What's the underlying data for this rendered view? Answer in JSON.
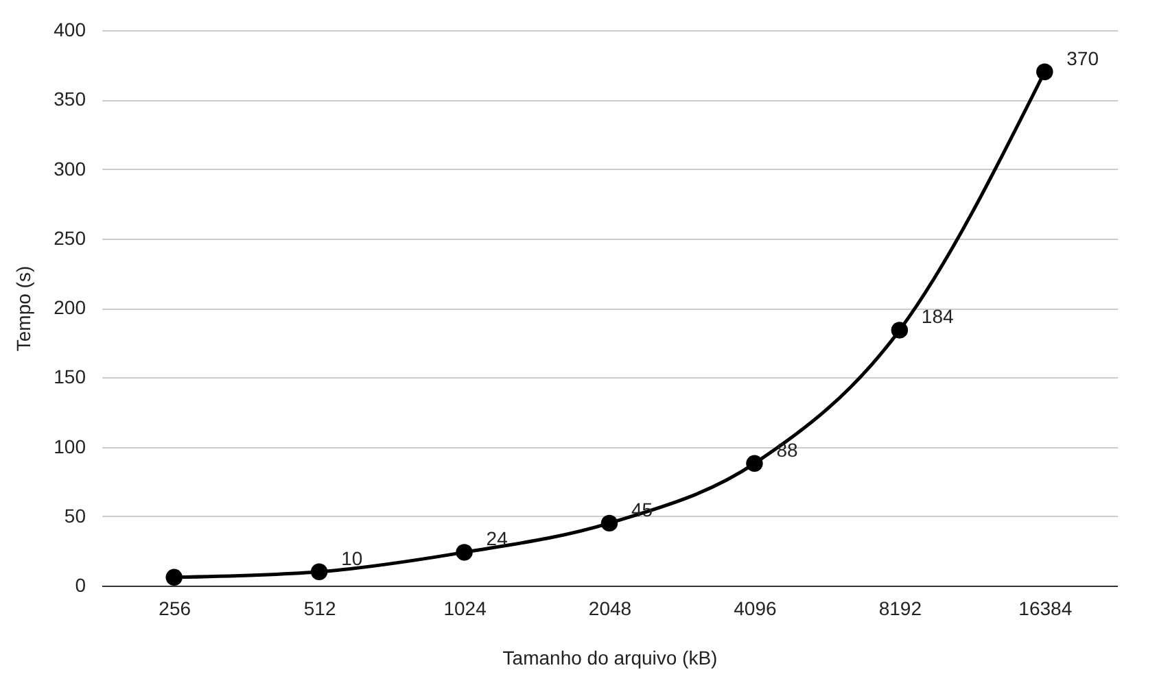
{
  "chart_data": {
    "type": "line",
    "xlabel": "Tamanho do arquivo (kB)",
    "ylabel": "Tempo (s)",
    "categories": [
      "256",
      "512",
      "1024",
      "2048",
      "4096",
      "8192",
      "16384"
    ],
    "series": [
      {
        "color": "#000000",
        "values": [
          6,
          10,
          24,
          45,
          88,
          184,
          370
        ],
        "value_labels": [
          null,
          "10",
          "24",
          "45",
          "88",
          "184",
          "370"
        ]
      }
    ],
    "ylim": [
      0,
      400
    ],
    "yticks": [
      0,
      50,
      100,
      150,
      200,
      250,
      300,
      350,
      400
    ],
    "grid": "y",
    "marker": "circle",
    "line_style": "solid",
    "legend": false
  }
}
